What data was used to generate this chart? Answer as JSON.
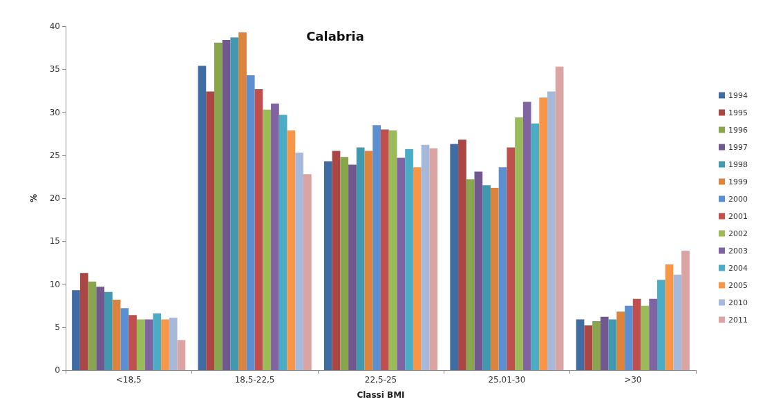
{
  "chart_data": {
    "type": "bar",
    "title": "Calabria",
    "xlabel": "Classi BMI",
    "ylabel": "%",
    "categories": [
      "<18,5",
      "18,5-22,5",
      "22,5-25",
      "25,01-30",
      ">30"
    ],
    "ylim": [
      0,
      40
    ],
    "yticks": [
      0,
      5,
      10,
      15,
      20,
      25,
      30,
      35,
      40
    ],
    "grid": false,
    "legend": "right",
    "series": [
      {
        "name": "1994",
        "color": "#3f6ca3",
        "values": [
          9.3,
          35.4,
          24.3,
          26.3,
          5.9
        ]
      },
      {
        "name": "1995",
        "color": "#aa4643",
        "values": [
          11.3,
          32.4,
          25.5,
          26.8,
          5.2
        ]
      },
      {
        "name": "1996",
        "color": "#89a54e",
        "values": [
          10.3,
          38.1,
          24.8,
          22.2,
          5.7
        ]
      },
      {
        "name": "1997",
        "color": "#71588f",
        "values": [
          9.7,
          38.4,
          23.9,
          23.1,
          6.2
        ]
      },
      {
        "name": "1998",
        "color": "#4198af",
        "values": [
          9.1,
          38.7,
          25.9,
          21.5,
          5.9
        ]
      },
      {
        "name": "1999",
        "color": "#db843d",
        "values": [
          8.2,
          39.3,
          25.5,
          21.2,
          6.8
        ]
      },
      {
        "name": "2000",
        "color": "#5b8fd0",
        "values": [
          7.2,
          34.3,
          28.5,
          23.6,
          7.5
        ]
      },
      {
        "name": "2001",
        "color": "#c0504d",
        "values": [
          6.4,
          32.7,
          28.0,
          25.9,
          8.3
        ]
      },
      {
        "name": "2002",
        "color": "#9bbb59",
        "values": [
          5.9,
          30.3,
          27.9,
          29.4,
          7.5
        ]
      },
      {
        "name": "2003",
        "color": "#8064a2",
        "values": [
          5.9,
          31.0,
          24.7,
          31.2,
          8.3
        ]
      },
      {
        "name": "2004",
        "color": "#4bacc6",
        "values": [
          6.6,
          29.7,
          25.7,
          28.7,
          10.5
        ]
      },
      {
        "name": "2005",
        "color": "#f79646",
        "values": [
          5.9,
          27.9,
          23.6,
          31.7,
          12.3
        ]
      },
      {
        "name": "2010",
        "color": "#a7b9da",
        "values": [
          6.1,
          25.3,
          26.2,
          32.4,
          11.1
        ]
      },
      {
        "name": "2011",
        "color": "#d9a4a2",
        "values": [
          3.5,
          22.8,
          25.8,
          35.3,
          13.9
        ]
      }
    ]
  }
}
